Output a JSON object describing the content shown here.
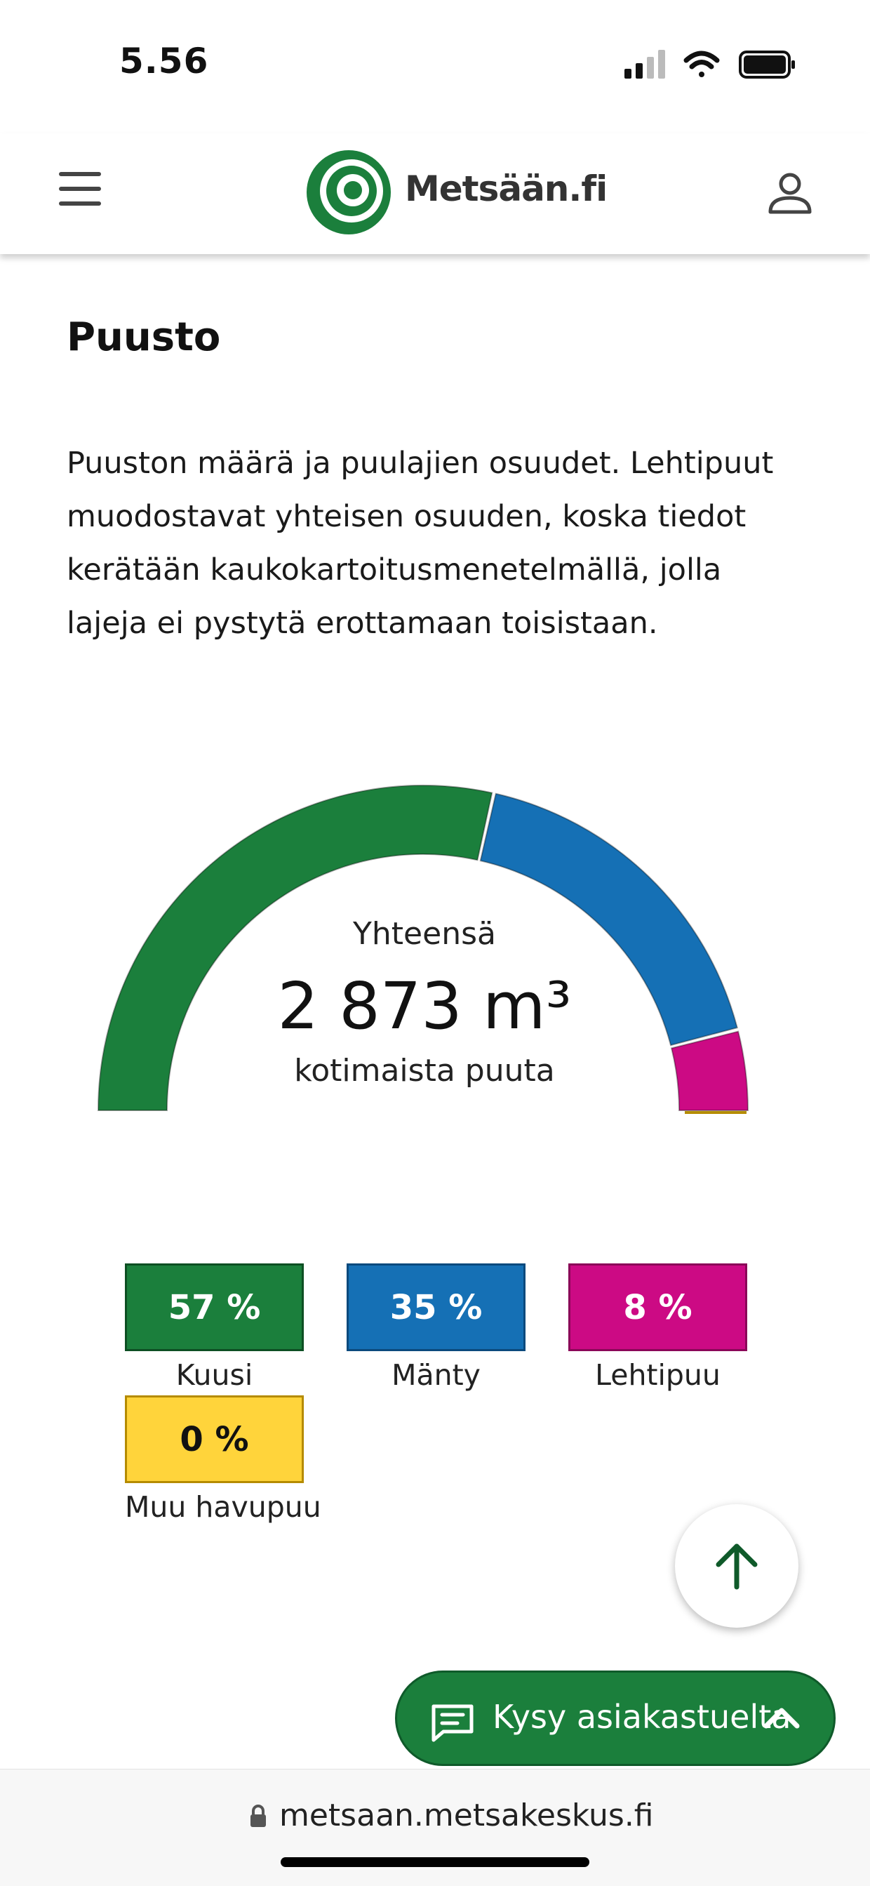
{
  "status_bar": {
    "time": "5.56",
    "icons": [
      "signal-icon",
      "wifi-icon",
      "battery-icon"
    ]
  },
  "header": {
    "logo_text": "Metsään.fi",
    "icons": [
      "menu-icon",
      "logo-target-icon",
      "user-icon"
    ]
  },
  "content": {
    "title": "Puusto",
    "description": "Puuston määrä ja puulajien osuudet. Lehtipuut muodostavat yhteisen osuuden, koska tiedot kerätään kaukokartoitusmenetelmällä, jolla lajeja ei pystytä erottamaan toisistaan."
  },
  "gauge": {
    "label": "Yhteensä",
    "total": "2 873 m³",
    "subtitle": "kotimaista puuta"
  },
  "chart_data": {
    "type": "pie",
    "categories": [
      "Kuusi",
      "Mänty",
      "Lehtipuu",
      "Muu havupuu"
    ],
    "values": [
      57,
      35,
      8,
      0
    ],
    "value_labels": [
      "57 %",
      "35 %",
      "8 %",
      "0 %"
    ],
    "colors": [
      "#1b7f3c",
      "#1570b5",
      "#cc0a84",
      "#ffd43b"
    ],
    "legend_placement": "bottom"
  },
  "actions": {
    "chat_label": "Kysy asiakastuelta"
  },
  "browser": {
    "url": "metsaan.metsakeskus.fi"
  }
}
